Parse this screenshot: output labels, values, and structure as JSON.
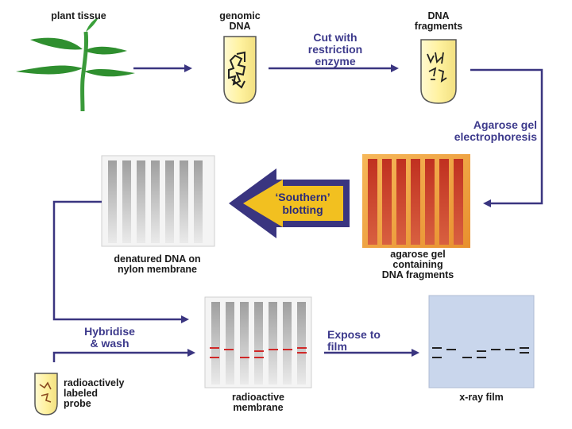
{
  "labels": {
    "plant_tissue": "plant tissue",
    "genomic_dna_1": "genomic",
    "genomic_dna_2": "DNA",
    "dna_fragments_1": "DNA",
    "dna_fragments_2": "fragments",
    "agarose_gel_1": "agarose gel",
    "agarose_gel_2": "containing",
    "agarose_gel_3": "DNA fragments",
    "nylon_1": "denatured DNA on",
    "nylon_2": "nylon membrane",
    "probe_1": "radioactively",
    "probe_2": "labeled",
    "probe_3": "probe",
    "radio_membrane_1": "radioactive",
    "radio_membrane_2": "membrane",
    "xray_film": "x-ray film"
  },
  "steps": {
    "cut_1": "Cut with",
    "cut_2": "restriction",
    "cut_3": "enzyme",
    "electro_1": "Agarose gel",
    "electro_2": "electrophoresis",
    "southern_1": "‘Southern’",
    "southern_2": "blotting",
    "hybridise_1": "Hybridise",
    "hybridise_2": "& wash",
    "expose_1": "Expose to",
    "expose_2": "film"
  },
  "colors": {
    "arrow": "#3a3580",
    "gel_orange": "#f0a040",
    "gel_lane": "#c8402a",
    "band_red": "#d02828",
    "film_blue": "#c9d6ec",
    "tube_fill": "#fff6b8",
    "plant_green": "#3a9a3a",
    "southern_arrow": "#3a3580",
    "southern_fill": "#f2c020"
  }
}
